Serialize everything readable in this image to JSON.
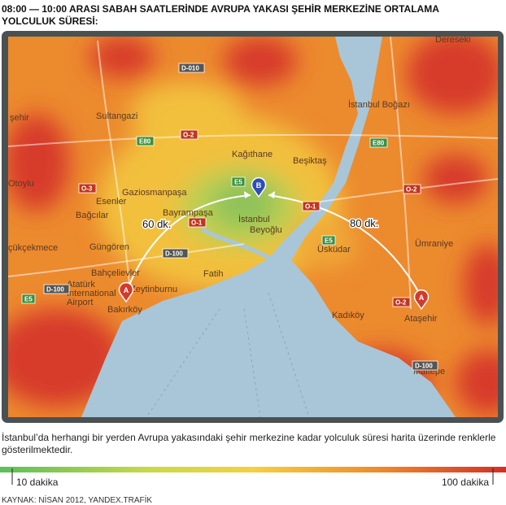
{
  "header": {
    "title_line1": "08:00 — 10:00 ARASI SABAH SAATLERİNDE AVRUPA YAKASI ŞEHİR MERKEZİNE ORTALAMA",
    "title_line2": "YOLCULUK SÜRESİ:"
  },
  "map": {
    "labels": [
      "Dereseki",
      "şehir",
      "Sultangazi",
      "İstanbul Boğazı",
      "Kağıthane",
      "Beşiktaş",
      "Otoylu",
      "Gaziosmanpaşa",
      "Esenler",
      "Bağcılar",
      "Bayrampaşa",
      "İstanbul",
      "Beyoğlu",
      "çükçekmece",
      "Güngören",
      "Bahçelievler",
      "Zeytinburnu",
      "Fatih",
      "Üsküdar",
      "Ümraniye",
      "Atatürk",
      "International",
      "Airport",
      "Bakırköy",
      "Kadıköy",
      "Ataşehir",
      "Maltepe"
    ],
    "roads": [
      "D-010",
      "O-2",
      "E80",
      "E80",
      "O-3",
      "E5",
      "O-1",
      "O-1",
      "O-2",
      "D-100",
      "E5",
      "D-100",
      "E5",
      "O-2",
      "D-100"
    ],
    "markers": [
      "A",
      "B",
      "A"
    ],
    "routes": [
      "60 dk.",
      "80 dk."
    ]
  },
  "caption": {
    "line1": "İstanbul’da herhangi bir yerden Avrupa yakasındaki şehir merkezine kadar yolculuk süresi harita üzerinde renklerle",
    "line2": "gösterilmektedir."
  },
  "legend": {
    "min": "10 dakika",
    "max": "100 dakika"
  },
  "source": "KAYNAK: NİSAN 2012, YANDEX.TRAFİK"
}
